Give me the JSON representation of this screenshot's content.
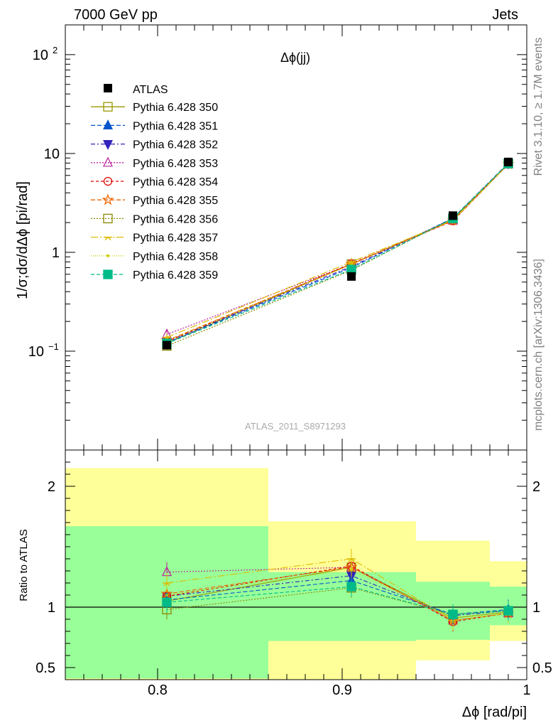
{
  "header": {
    "left": "7000 GeV pp",
    "right": "Jets"
  },
  "side": {
    "top": "Rivet 3.1.10, ≥ 1.7M events",
    "bottom": "mcplots.cern.ch [arXiv:1306.3436]"
  },
  "colors": {
    "band_inner": "#99ff99",
    "band_outer": "#ffff99",
    "data": "#000000"
  },
  "chart_data": [
    {
      "type": "line",
      "title": "Δϕ(jj)",
      "ylabel": "1/σ;dσ/dΔϕ [pi/rad]",
      "xlabel": "",
      "watermark": "ATLAS_2011_S8971293",
      "yscale": "log",
      "xlim": [
        0.75,
        1.0
      ],
      "ylim": [
        0.01,
        200
      ],
      "yticks": [
        {
          "v": 100,
          "label": "10",
          "sup": "2"
        },
        {
          "v": 10,
          "label": "10",
          "sup": ""
        },
        {
          "v": 1,
          "label": "1",
          "sup": ""
        },
        {
          "v": 0.1,
          "label": "10",
          "sup": "−1"
        }
      ],
      "x": [
        0.805,
        0.905,
        0.96,
        0.99
      ],
      "data": {
        "name": "ATLAS",
        "values": [
          0.115,
          0.57,
          2.35,
          8.2
        ]
      },
      "legend_position": "top-left",
      "series": [
        {
          "name": "Pythia 6.428 350",
          "color": "#999900",
          "marker": "square-open",
          "dash": "solid",
          "values": [
            0.121,
            0.76,
            2.15,
            7.9
          ]
        },
        {
          "name": "Pythia 6.428 351",
          "color": "#0055cc",
          "marker": "triangle-up",
          "dash": "6,3",
          "values": [
            0.122,
            0.7,
            2.22,
            8.0
          ]
        },
        {
          "name": "Pythia 6.428 352",
          "color": "#3322bb",
          "marker": "triangle-down",
          "dash": "6,3,2,3",
          "values": [
            0.125,
            0.72,
            2.2,
            7.9
          ]
        },
        {
          "name": "Pythia 6.428 353",
          "color": "#bb2299",
          "marker": "triangle-up-open",
          "dash": "2,2",
          "values": [
            0.148,
            0.76,
            2.1,
            7.8
          ]
        },
        {
          "name": "Pythia 6.428 354",
          "color": "#dd0000",
          "marker": "circle-open",
          "dash": "4,3",
          "values": [
            0.125,
            0.77,
            2.08,
            7.8
          ]
        },
        {
          "name": "Pythia 6.428 355",
          "color": "#ee6600",
          "marker": "star-open",
          "dash": "6,3",
          "values": [
            0.128,
            0.76,
            2.1,
            7.8
          ]
        },
        {
          "name": "Pythia 6.428 356",
          "color": "#888800",
          "marker": "square-open",
          "dash": "2,2",
          "values": [
            0.113,
            0.66,
            2.2,
            7.9
          ]
        },
        {
          "name": "Pythia 6.428 357",
          "color": "#ddbb00",
          "marker": "tri-line",
          "dash": "10,3,2,3",
          "values": [
            0.138,
            0.8,
            2.1,
            7.8
          ]
        },
        {
          "name": "Pythia 6.428 358",
          "color": "#cccc00",
          "marker": "dot",
          "dash": "1,2",
          "values": [
            0.127,
            0.75,
            2.15,
            7.9
          ]
        },
        {
          "name": "Pythia 6.428 359",
          "color": "#00bb88",
          "marker": "square",
          "dash": "5,3",
          "values": [
            0.12,
            0.67,
            2.2,
            7.9
          ]
        }
      ]
    },
    {
      "type": "line",
      "title": "",
      "ylabel": "Ratio to ATLAS",
      "xlabel": "Δϕ [rad/pi]",
      "xlim": [
        0.75,
        1.0
      ],
      "ylim": [
        0.4,
        2.3
      ],
      "yticks": [
        0.5,
        1,
        2
      ],
      "xticks": [
        0.8,
        0.9,
        1.0
      ],
      "xticklabels": [
        "0.8",
        "0.9",
        "1"
      ],
      "bands": [
        {
          "x0": 0.75,
          "x1": 0.86,
          "inner": [
            0.41,
            1.67
          ],
          "outer": [
            0.355,
            2.15
          ]
        },
        {
          "x0": 0.86,
          "x1": 0.94,
          "inner": [
            0.72,
            1.29
          ],
          "outer": [
            0.355,
            1.71
          ]
        },
        {
          "x0": 0.94,
          "x1": 0.98,
          "inner": [
            0.73,
            1.21
          ],
          "outer": [
            0.56,
            1.55
          ]
        },
        {
          "x0": 0.98,
          "x1": 1.0,
          "inner": [
            0.85,
            1.17
          ],
          "outer": [
            0.72,
            1.38
          ]
        }
      ],
      "x": [
        0.805,
        0.905,
        0.96,
        0.99
      ],
      "series": [
        {
          "name": "Pythia 6.428 350",
          "values": [
            1.05,
            1.33,
            0.91,
            0.96
          ]
        },
        {
          "name": "Pythia 6.428 351",
          "values": [
            1.06,
            1.22,
            0.94,
            0.98
          ]
        },
        {
          "name": "Pythia 6.428 352",
          "values": [
            1.09,
            1.26,
            0.93,
            0.97
          ]
        },
        {
          "name": "Pythia 6.428 353",
          "values": [
            1.29,
            1.33,
            0.89,
            0.95
          ]
        },
        {
          "name": "Pythia 6.428 354",
          "values": [
            1.09,
            1.34,
            0.88,
            0.95
          ]
        },
        {
          "name": "Pythia 6.428 355",
          "values": [
            1.11,
            1.33,
            0.89,
            0.95
          ]
        },
        {
          "name": "Pythia 6.428 356",
          "values": [
            0.98,
            1.16,
            0.94,
            0.97
          ]
        },
        {
          "name": "Pythia 6.428 357",
          "values": [
            1.2,
            1.4,
            0.89,
            0.95
          ]
        },
        {
          "name": "Pythia 6.428 358",
          "values": [
            1.1,
            1.31,
            0.91,
            0.96
          ]
        },
        {
          "name": "Pythia 6.428 359",
          "values": [
            1.04,
            1.17,
            0.94,
            0.97
          ]
        }
      ]
    }
  ]
}
